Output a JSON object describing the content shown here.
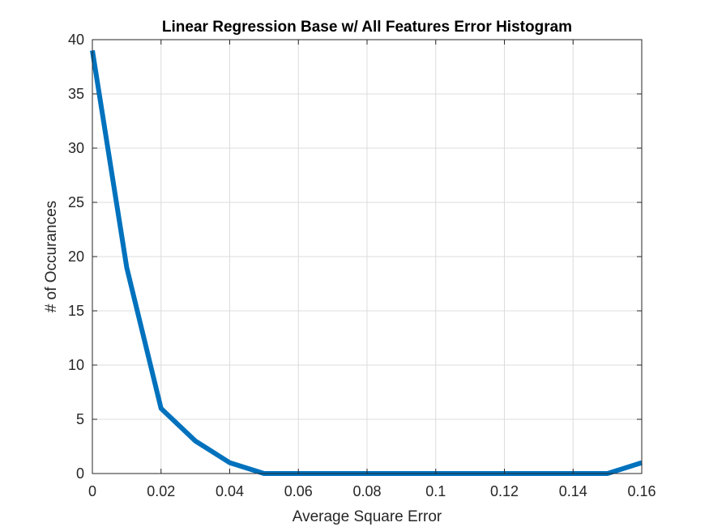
{
  "chart_data": {
    "type": "line",
    "title": "Linear Regression Base w/ All Features Error Histogram",
    "xlabel": "Average Square Error",
    "ylabel": "# of Occurances",
    "xlim": [
      0,
      0.16
    ],
    "ylim": [
      0,
      40
    ],
    "xticks": [
      0,
      0.02,
      0.04,
      0.06,
      0.08,
      0.1,
      0.12,
      0.14,
      0.16
    ],
    "xtick_labels": [
      "0",
      "0.02",
      "0.04",
      "0.06",
      "0.08",
      "0.1",
      "0.12",
      "0.14",
      "0.16"
    ],
    "yticks": [
      0,
      5,
      10,
      15,
      20,
      25,
      30,
      35,
      40
    ],
    "ytick_labels": [
      "0",
      "5",
      "10",
      "15",
      "20",
      "25",
      "30",
      "35",
      "40"
    ],
    "grid": true,
    "series": [
      {
        "x": [
          0,
          0.01,
          0.02,
          0.03,
          0.04,
          0.05,
          0.06,
          0.07,
          0.08,
          0.09,
          0.1,
          0.11,
          0.12,
          0.13,
          0.14,
          0.15,
          0.16
        ],
        "y": [
          39,
          19,
          6,
          3,
          1,
          0,
          0,
          0,
          0,
          0,
          0,
          0,
          0,
          0,
          0,
          0,
          1
        ],
        "color": "#0072bd"
      }
    ]
  }
}
